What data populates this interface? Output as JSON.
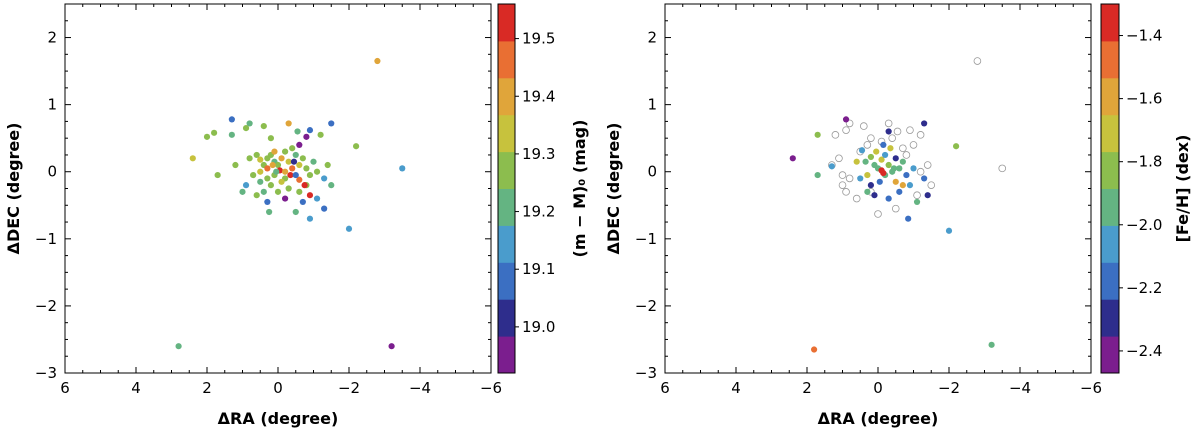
{
  "chart_data": [
    {
      "type": "scatter",
      "xlabel": "ΔRA (degree)",
      "ylabel": "ΔDEC (degree)",
      "xlim": [
        6,
        -6
      ],
      "ylim": [
        -3,
        2.5
      ],
      "xticks": [
        "6",
        "4",
        "2",
        "0",
        "−2",
        "−4",
        "−6"
      ],
      "yticks": [
        "−3",
        "−2",
        "−1",
        "0",
        "1",
        "2"
      ],
      "colorbar": {
        "label": "(m − M)₀ (mag)",
        "range": [
          18.92,
          19.56
        ],
        "ticks": [
          "19.0",
          "19.1",
          "19.2",
          "19.3",
          "19.4",
          "19.5"
        ],
        "tick_values": [
          19.0,
          19.1,
          19.2,
          19.3,
          19.4,
          19.5
        ]
      },
      "points": [
        [
          2.8,
          -2.6,
          19.2
        ],
        [
          -3.2,
          -2.6,
          18.95
        ],
        [
          -2.8,
          1.65,
          19.42
        ],
        [
          -3.5,
          0.05,
          19.15
        ],
        [
          -2.0,
          -0.85,
          19.15
        ],
        [
          -2.2,
          0.38,
          19.25
        ],
        [
          1.3,
          0.78,
          19.1
        ],
        [
          0.8,
          0.72,
          19.2
        ],
        [
          0.4,
          0.68,
          19.25
        ],
        [
          -0.3,
          0.72,
          19.38
        ],
        [
          -0.55,
          0.6,
          19.2
        ],
        [
          -0.8,
          0.52,
          18.95
        ],
        [
          -0.9,
          0.62,
          19.05
        ],
        [
          -1.5,
          0.72,
          19.1
        ],
        [
          -1.2,
          0.55,
          19.25
        ],
        [
          0.9,
          0.65,
          19.3
        ],
        [
          2.4,
          0.2,
          19.35
        ],
        [
          2.0,
          0.52,
          19.25
        ],
        [
          1.8,
          0.58,
          19.3
        ],
        [
          1.3,
          0.55,
          19.22
        ],
        [
          0.2,
          0.5,
          19.3
        ],
        [
          1.2,
          0.1,
          19.3
        ],
        [
          1.7,
          -0.05,
          19.25
        ],
        [
          0.8,
          0.2,
          19.3
        ],
        [
          0.6,
          0.25,
          19.3
        ],
        [
          0.5,
          0.18,
          19.35
        ],
        [
          0.4,
          0.1,
          19.3
        ],
        [
          0.3,
          0.2,
          19.25
        ],
        [
          0.2,
          0.25,
          19.3
        ],
        [
          0.1,
          0.15,
          19.2
        ],
        [
          0.0,
          0.1,
          19.3
        ],
        [
          -0.1,
          0.2,
          19.4
        ],
        [
          -0.2,
          0.3,
          19.25
        ],
        [
          -0.3,
          0.15,
          19.35
        ],
        [
          -0.4,
          0.05,
          19.45
        ],
        [
          -0.5,
          0.25,
          19.2
        ],
        [
          -0.6,
          0.1,
          19.35
        ],
        [
          -0.7,
          0.2,
          19.3
        ],
        [
          -0.8,
          0.05,
          19.3
        ],
        [
          -0.9,
          -0.05,
          19.25
        ],
        [
          -1.0,
          0.15,
          19.2
        ],
        [
          -1.1,
          0.0,
          19.3
        ],
        [
          -1.3,
          -0.1,
          19.15
        ],
        [
          -1.5,
          -0.2,
          19.2
        ],
        [
          -1.4,
          0.1,
          19.25
        ],
        [
          -0.2,
          -0.1,
          19.3
        ],
        [
          -0.1,
          -0.15,
          19.35
        ],
        [
          0.1,
          -0.05,
          19.3
        ],
        [
          0.2,
          -0.2,
          19.25
        ],
        [
          0.3,
          -0.1,
          19.3
        ],
        [
          0.5,
          -0.15,
          19.2
        ],
        [
          0.7,
          -0.05,
          19.3
        ],
        [
          0.9,
          -0.2,
          19.15
        ],
        [
          1.0,
          -0.3,
          19.2
        ],
        [
          0.6,
          -0.35,
          19.25
        ],
        [
          0.4,
          -0.3,
          19.2
        ],
        [
          0.0,
          -0.3,
          19.25
        ],
        [
          -0.3,
          -0.25,
          19.3
        ],
        [
          -0.6,
          -0.3,
          19.25
        ],
        [
          -0.8,
          -0.2,
          19.3
        ],
        [
          -1.1,
          -0.4,
          19.15
        ],
        [
          -1.3,
          -0.55,
          19.1
        ],
        [
          -0.9,
          -0.7,
          19.15
        ],
        [
          -0.5,
          -0.6,
          19.2
        ],
        [
          0.1,
          0.3,
          19.4
        ],
        [
          0.3,
          0.05,
          19.45
        ],
        [
          -0.05,
          0.02,
          19.5
        ],
        [
          -0.35,
          -0.05,
          19.55
        ],
        [
          -0.6,
          -0.12,
          19.45
        ],
        [
          -0.75,
          -0.2,
          19.5
        ],
        [
          -0.9,
          -0.35,
          19.55
        ],
        [
          0.15,
          0.1,
          19.4
        ],
        [
          0.5,
          0.0,
          19.35
        ],
        [
          -0.4,
          0.35,
          19.3
        ],
        [
          -0.2,
          0.0,
          19.4
        ],
        [
          -0.6,
          0.4,
          18.95
        ],
        [
          -0.45,
          0.15,
          19.0
        ],
        [
          -0.5,
          -0.05,
          19.05
        ],
        [
          -0.2,
          -0.4,
          18.95
        ],
        [
          0.3,
          -0.45,
          19.05
        ],
        [
          -0.7,
          -0.45,
          19.1
        ],
        [
          0.05,
          0.0,
          19.2
        ],
        [
          0.25,
          -0.6,
          19.2
        ]
      ]
    },
    {
      "type": "scatter",
      "xlabel": "ΔRA (degree)",
      "ylabel": "ΔDEC (degree)",
      "xlim": [
        6,
        -6
      ],
      "ylim": [
        -3,
        2.5
      ],
      "xticks": [
        "6",
        "4",
        "2",
        "0",
        "−2",
        "−4",
        "−6"
      ],
      "yticks": [
        "−3",
        "−2",
        "−1",
        "0",
        "1",
        "2"
      ],
      "colorbar": {
        "label": "[Fe/H] (dex)",
        "range": [
          -2.47,
          -1.3
        ],
        "ticks": [
          "−1.4",
          "−1.6",
          "−1.8",
          "−2.0",
          "−2.2",
          "−2.4"
        ],
        "tick_values": [
          -1.4,
          -1.6,
          -1.8,
          -2.0,
          -2.2,
          -2.4
        ]
      },
      "open_points": [
        [
          -2.8,
          1.65
        ],
        [
          -3.5,
          0.05
        ],
        [
          0.8,
          0.72
        ],
        [
          0.4,
          0.68
        ],
        [
          -0.3,
          0.72
        ],
        [
          -0.55,
          0.6
        ],
        [
          1.2,
          0.55
        ],
        [
          0.2,
          0.5
        ],
        [
          1.3,
          0.1
        ],
        [
          0.9,
          0.62
        ],
        [
          -0.9,
          0.62
        ],
        [
          -1.2,
          0.55
        ],
        [
          0.5,
          0.3
        ],
        [
          0.3,
          0.4
        ],
        [
          -0.1,
          0.45
        ],
        [
          -0.4,
          0.5
        ],
        [
          -0.7,
          0.35
        ],
        [
          -1.0,
          0.4
        ],
        [
          1.0,
          -0.2
        ],
        [
          1.1,
          0.2
        ],
        [
          0.8,
          -0.1
        ],
        [
          -1.2,
          0.0
        ],
        [
          -1.4,
          0.1
        ],
        [
          -1.5,
          -0.2
        ],
        [
          1.0,
          -0.05
        ],
        [
          0.6,
          -0.4
        ],
        [
          0.0,
          -0.63
        ],
        [
          -0.5,
          -0.55
        ],
        [
          -1.1,
          -0.35
        ],
        [
          0.9,
          -0.3
        ],
        [
          0.2,
          -0.3
        ],
        [
          -0.8,
          0.25
        ]
      ],
      "points": [
        [
          2.4,
          0.2,
          -2.4
        ],
        [
          1.7,
          0.55,
          -1.8
        ],
        [
          1.3,
          0.08,
          -2.05
        ],
        [
          1.7,
          -0.05,
          -2.0
        ],
        [
          0.9,
          0.78,
          -2.4
        ],
        [
          0.45,
          0.32,
          -2.1
        ],
        [
          0.35,
          0.15,
          -1.9
        ],
        [
          0.2,
          0.22,
          -1.85
        ],
        [
          0.1,
          0.1,
          -2.0
        ],
        [
          0.0,
          0.05,
          -1.9
        ],
        [
          -0.1,
          0.18,
          -1.7
        ],
        [
          -0.2,
          0.25,
          -2.1
        ],
        [
          -0.3,
          0.1,
          -1.8
        ],
        [
          -0.4,
          0.0,
          -2.0
        ],
        [
          -0.5,
          0.2,
          -2.3
        ],
        [
          -0.6,
          0.05,
          -1.9
        ],
        [
          -0.7,
          0.15,
          -2.0
        ],
        [
          -0.8,
          -0.05,
          -2.2
        ],
        [
          -0.9,
          -0.2,
          -2.1
        ],
        [
          -1.0,
          0.05,
          -2.1
        ],
        [
          -1.1,
          -0.45,
          -2.0
        ],
        [
          -1.3,
          -0.1,
          -2.2
        ],
        [
          -1.4,
          -0.35,
          -2.35
        ],
        [
          -1.3,
          0.72,
          -2.3
        ],
        [
          -0.3,
          0.6,
          -2.3
        ],
        [
          -2.2,
          0.38,
          -1.85
        ],
        [
          -2.0,
          -0.88,
          -2.1
        ],
        [
          1.8,
          -2.65,
          -1.45
        ],
        [
          -3.2,
          -2.58,
          -1.95
        ],
        [
          0.3,
          -0.05,
          -1.75
        ],
        [
          0.2,
          -0.2,
          -2.3
        ],
        [
          -0.05,
          -0.15,
          -2.2
        ],
        [
          -0.2,
          -0.05,
          -1.95
        ],
        [
          -0.5,
          -0.15,
          -1.6
        ],
        [
          -0.6,
          -0.3,
          -2.2
        ],
        [
          -0.85,
          -0.7,
          -2.2
        ],
        [
          -0.3,
          -0.4,
          -2.2
        ],
        [
          0.1,
          -0.35,
          -2.35
        ],
        [
          0.3,
          -0.3,
          -2.0
        ],
        [
          0.5,
          -0.1,
          -2.05
        ],
        [
          0.6,
          0.15,
          -1.75
        ],
        [
          0.05,
          0.3,
          -1.75
        ],
        [
          -0.1,
          0.02,
          -1.4
        ],
        [
          -0.15,
          -0.02,
          -1.35
        ],
        [
          -0.35,
          0.35,
          -1.7
        ],
        [
          -0.7,
          -0.2,
          -1.55
        ],
        [
          -0.45,
          0.05,
          -2.0
        ],
        [
          -0.15,
          0.4,
          -2.2
        ]
      ]
    }
  ]
}
